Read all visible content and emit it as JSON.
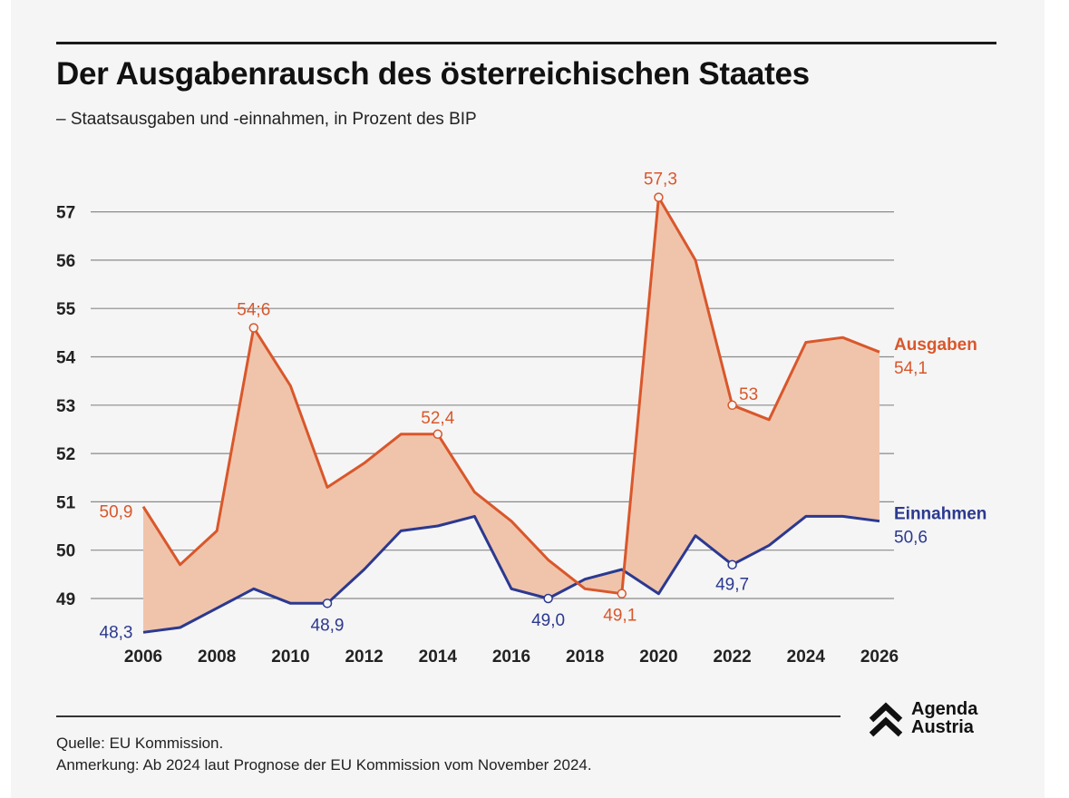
{
  "header": {
    "title": "Der Ausgabenrausch des österreichischen Staates",
    "subtitle": "– Staatsausgaben und -einnahmen, in Prozent des BIP"
  },
  "footer": {
    "source": "Quelle: EU Kommission.",
    "note": "Anmerkung: Ab 2024 laut Prognose der EU Kommission vom November 2024."
  },
  "logo": {
    "line1": "Agenda",
    "line2": "Austria",
    "icon": "double-chevron-up-icon"
  },
  "colors": {
    "ausgaben": "#d9572b",
    "einnahmen": "#2b3990",
    "fill": "#f0c4ab",
    "grid": "#8a8a8a",
    "background": "#f5f5f5"
  },
  "chart_data": {
    "type": "line",
    "x": [
      2006,
      2007,
      2008,
      2009,
      2010,
      2011,
      2012,
      2013,
      2014,
      2015,
      2016,
      2017,
      2018,
      2019,
      2020,
      2021,
      2022,
      2023,
      2024,
      2025,
      2026
    ],
    "series": [
      {
        "name": "Ausgaben",
        "values": [
          50.9,
          49.7,
          50.4,
          54.6,
          53.4,
          51.3,
          51.8,
          52.4,
          52.4,
          51.2,
          50.6,
          49.8,
          49.2,
          49.1,
          57.3,
          56.0,
          53.0,
          52.7,
          54.3,
          54.4,
          54.1
        ]
      },
      {
        "name": "Einnahmen",
        "values": [
          48.3,
          48.4,
          48.8,
          49.2,
          48.9,
          48.9,
          49.6,
          50.4,
          50.5,
          50.7,
          49.2,
          49.0,
          49.4,
          49.6,
          49.1,
          50.3,
          49.7,
          50.1,
          50.7,
          50.7,
          50.6
        ]
      }
    ],
    "xticks": [
      "2006",
      "2008",
      "2010",
      "2012",
      "2014",
      "2016",
      "2018",
      "2020",
      "2022",
      "2024",
      "2026"
    ],
    "yticks": [
      "49",
      "50",
      "51",
      "52",
      "53",
      "54",
      "55",
      "56",
      "57"
    ],
    "ylim": [
      48.3,
      57.3
    ],
    "grid": true,
    "annotations": [
      {
        "series": "Ausgaben",
        "x": 2006,
        "label": "50,9",
        "marker": false
      },
      {
        "series": "Ausgaben",
        "x": 2009,
        "label": "54;6",
        "marker": true
      },
      {
        "series": "Ausgaben",
        "x": 2014,
        "label": "52,4",
        "marker": true
      },
      {
        "series": "Ausgaben",
        "x": 2019,
        "label": "49,1",
        "marker": true
      },
      {
        "series": "Ausgaben",
        "x": 2020,
        "label": "57,3",
        "marker": true
      },
      {
        "series": "Ausgaben",
        "x": 2022,
        "label": "53",
        "marker": true
      },
      {
        "series": "Einnahmen",
        "x": 2006,
        "label": "48,3",
        "marker": false
      },
      {
        "series": "Einnahmen",
        "x": 2011,
        "label": "48,9",
        "marker": true
      },
      {
        "series": "Einnahmen",
        "x": 2017,
        "label": "49,0",
        "marker": true
      },
      {
        "series": "Einnahmen",
        "x": 2022,
        "label": "49,7",
        "marker": true
      }
    ],
    "end_labels": [
      {
        "series": "Ausgaben",
        "name": "Ausgaben",
        "value": "54,1"
      },
      {
        "series": "Einnahmen",
        "name": "Einnahmen",
        "value": "50,6"
      }
    ]
  }
}
